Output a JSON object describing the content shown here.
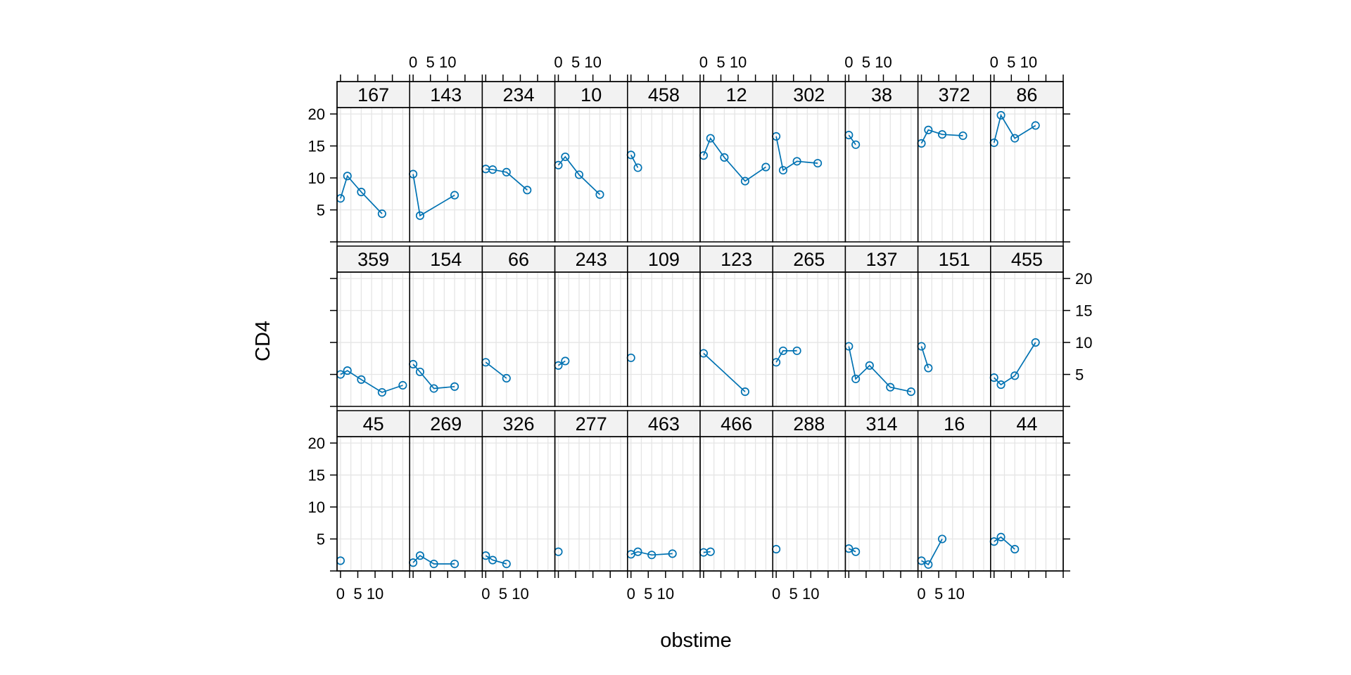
{
  "chart_data": {
    "type": "line",
    "title": "",
    "xlabel": "obstime",
    "ylabel": "CD4",
    "xlim": [
      -1,
      20
    ],
    "ylim": [
      0,
      21
    ],
    "x_ticks": [
      0,
      5,
      10
    ],
    "x_tick_labels": [
      "0",
      "5",
      "10"
    ],
    "y_ticks": [
      5,
      10,
      15,
      20
    ],
    "y_tick_labels": [
      "5",
      "10",
      "15",
      "20"
    ],
    "grid": true,
    "layout": {
      "columns": 10,
      "rows": 3
    },
    "style": {
      "line_color": "#0072b2",
      "strip_color": "#f2f2f2",
      "grid_color": "#e5e5e5"
    },
    "panels": [
      {
        "id": "167",
        "x": [
          0,
          2,
          6,
          12
        ],
        "y": [
          6.8,
          10.3,
          7.8,
          4.4
        ]
      },
      {
        "id": "143",
        "x": [
          0,
          2,
          12
        ],
        "y": [
          10.6,
          4.1,
          7.3
        ]
      },
      {
        "id": "234",
        "x": [
          0,
          2,
          6,
          12
        ],
        "y": [
          11.4,
          11.3,
          10.9,
          8.1
        ]
      },
      {
        "id": "10",
        "x": [
          0,
          2,
          6,
          12
        ],
        "y": [
          12.0,
          13.3,
          10.5,
          7.4
        ]
      },
      {
        "id": "458",
        "x": [
          0,
          2
        ],
        "y": [
          13.6,
          11.6
        ]
      },
      {
        "id": "12",
        "x": [
          0,
          2,
          6,
          12,
          18
        ],
        "y": [
          13.5,
          16.2,
          13.2,
          9.5,
          11.7
        ]
      },
      {
        "id": "302",
        "x": [
          0,
          2,
          6,
          12
        ],
        "y": [
          16.5,
          11.2,
          12.6,
          12.3
        ]
      },
      {
        "id": "38",
        "x": [
          0,
          2
        ],
        "y": [
          16.7,
          15.2
        ]
      },
      {
        "id": "372",
        "x": [
          0,
          2,
          6,
          12
        ],
        "y": [
          15.4,
          17.5,
          16.8,
          16.6
        ]
      },
      {
        "id": "86",
        "x": [
          0,
          2,
          6,
          12
        ],
        "y": [
          15.5,
          19.8,
          16.2,
          18.2
        ]
      },
      {
        "id": "359",
        "x": [
          0,
          2,
          6,
          12,
          18
        ],
        "y": [
          5.0,
          5.6,
          4.2,
          2.2,
          3.3
        ]
      },
      {
        "id": "154",
        "x": [
          0,
          2,
          6,
          12
        ],
        "y": [
          6.6,
          5.4,
          2.8,
          3.1
        ]
      },
      {
        "id": "66",
        "x": [
          0,
          6
        ],
        "y": [
          6.9,
          4.4
        ]
      },
      {
        "id": "243",
        "x": [
          0,
          2
        ],
        "y": [
          6.4,
          7.1
        ]
      },
      {
        "id": "109",
        "x": [
          0
        ],
        "y": [
          7.6
        ]
      },
      {
        "id": "123",
        "x": [
          0,
          12
        ],
        "y": [
          8.3,
          2.3
        ]
      },
      {
        "id": "265",
        "x": [
          0,
          2,
          6
        ],
        "y": [
          6.9,
          8.7,
          8.7
        ]
      },
      {
        "id": "137",
        "x": [
          0,
          2,
          6,
          12,
          18
        ],
        "y": [
          9.4,
          4.3,
          6.4,
          3.0,
          2.3
        ]
      },
      {
        "id": "151",
        "x": [
          0,
          2
        ],
        "y": [
          9.4,
          6.0
        ]
      },
      {
        "id": "455",
        "x": [
          0,
          2,
          6,
          12
        ],
        "y": [
          4.5,
          3.4,
          4.8,
          10.0
        ]
      },
      {
        "id": "45",
        "x": [
          0
        ],
        "y": [
          1.6
        ]
      },
      {
        "id": "269",
        "x": [
          0,
          2,
          6,
          12
        ],
        "y": [
          1.3,
          2.4,
          1.1,
          1.1
        ]
      },
      {
        "id": "326",
        "x": [
          0,
          2,
          6
        ],
        "y": [
          2.4,
          1.7,
          1.1
        ]
      },
      {
        "id": "277",
        "x": [
          0
        ],
        "y": [
          3.0
        ]
      },
      {
        "id": "463",
        "x": [
          0,
          2,
          6,
          12
        ],
        "y": [
          2.6,
          3.0,
          2.5,
          2.7
        ]
      },
      {
        "id": "466",
        "x": [
          0,
          2
        ],
        "y": [
          2.9,
          3.0
        ]
      },
      {
        "id": "288",
        "x": [
          0
        ],
        "y": [
          3.4
        ]
      },
      {
        "id": "314",
        "x": [
          0,
          2
        ],
        "y": [
          3.5,
          3.0
        ]
      },
      {
        "id": "16",
        "x": [
          0,
          2,
          6
        ],
        "y": [
          1.6,
          1.0,
          5.0
        ]
      },
      {
        "id": "44",
        "x": [
          0,
          2,
          6
        ],
        "y": [
          4.6,
          5.3,
          3.4
        ]
      }
    ]
  }
}
